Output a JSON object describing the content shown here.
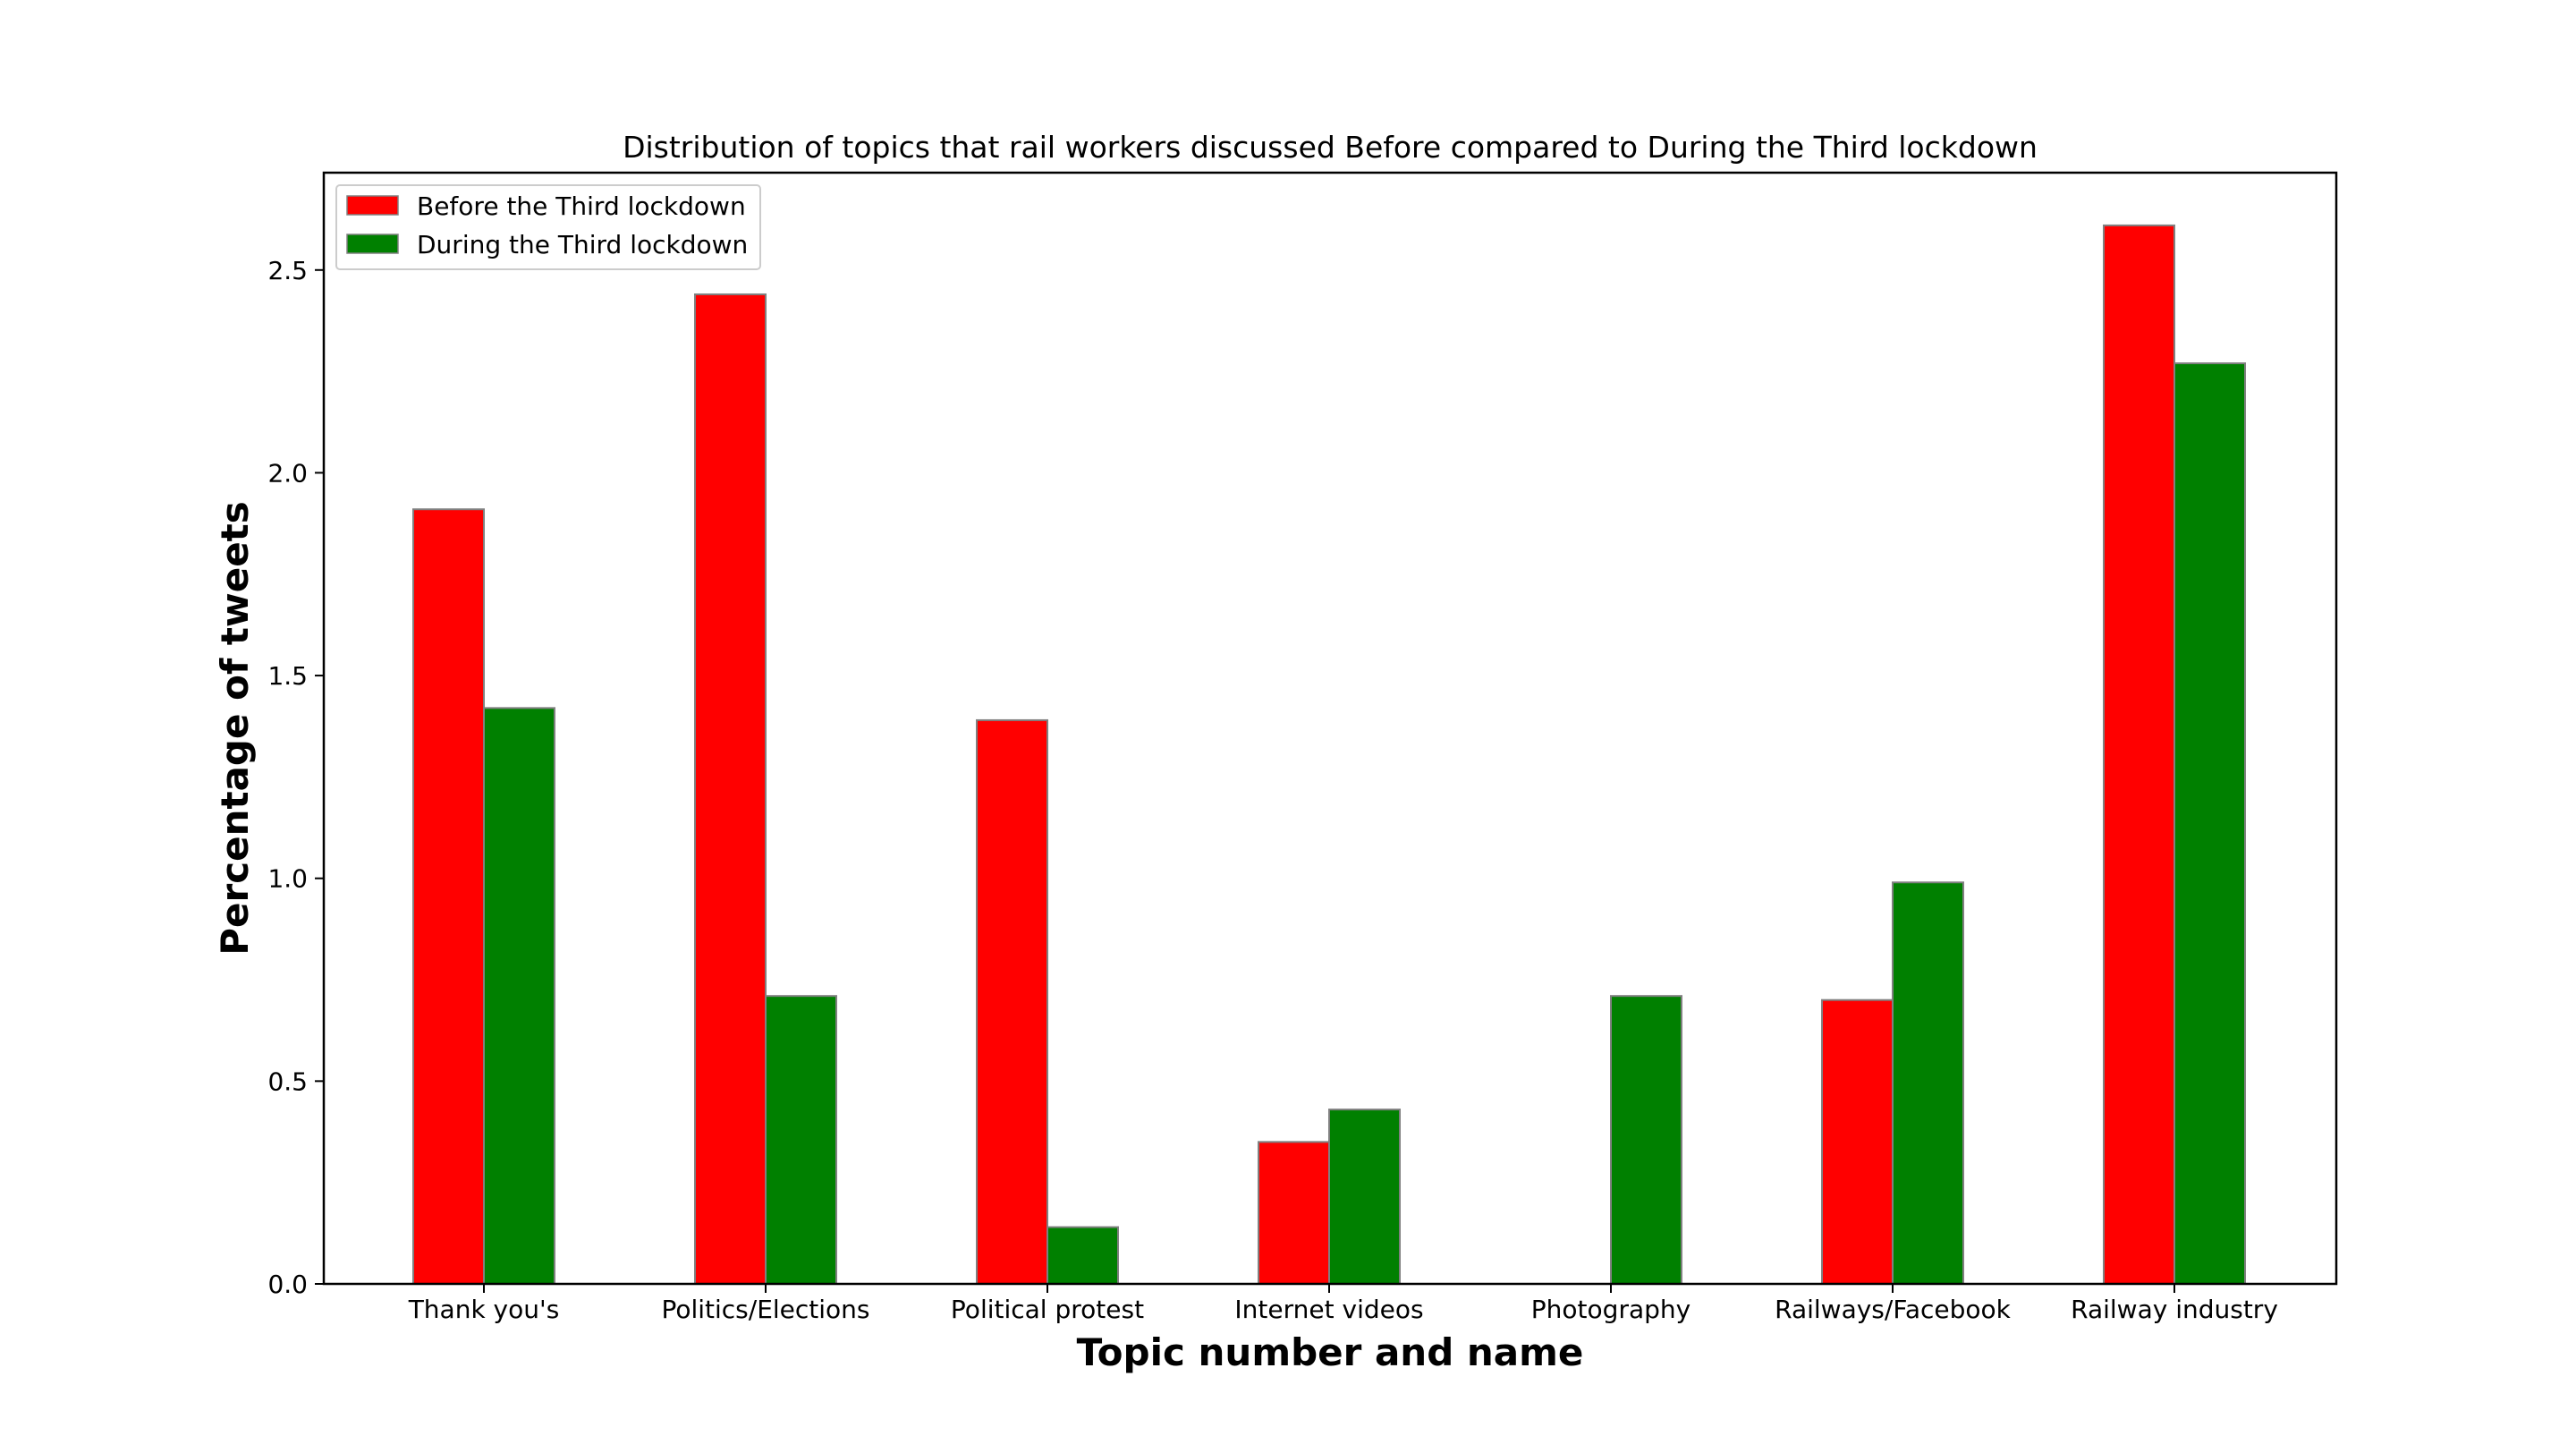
{
  "chart_data": {
    "type": "bar",
    "title": "Distribution of topics that rail workers discussed Before compared to During the Third lockdown",
    "xlabel": "Topic number and name",
    "ylabel": "Percentage of tweets",
    "categories": [
      "Thank you's",
      "Politics/Elections",
      "Political protest",
      "Internet videos",
      "Photography",
      "Railways/Facebook",
      "Railway industry"
    ],
    "series": [
      {
        "name": "Before the Third lockdown",
        "color": "#ff0000",
        "values": [
          1.91,
          2.44,
          1.39,
          0.35,
          0.0,
          0.7,
          2.61
        ]
      },
      {
        "name": "During the Third lockdown",
        "color": "#008000",
        "values": [
          1.42,
          0.71,
          0.14,
          0.43,
          0.71,
          0.99,
          2.27
        ]
      }
    ],
    "ylim": [
      0,
      2.74
    ],
    "yticks": [
      "0.0",
      "0.5",
      "1.0",
      "1.5",
      "2.0",
      "2.5"
    ],
    "legend_position": "top-left",
    "grid": false
  }
}
